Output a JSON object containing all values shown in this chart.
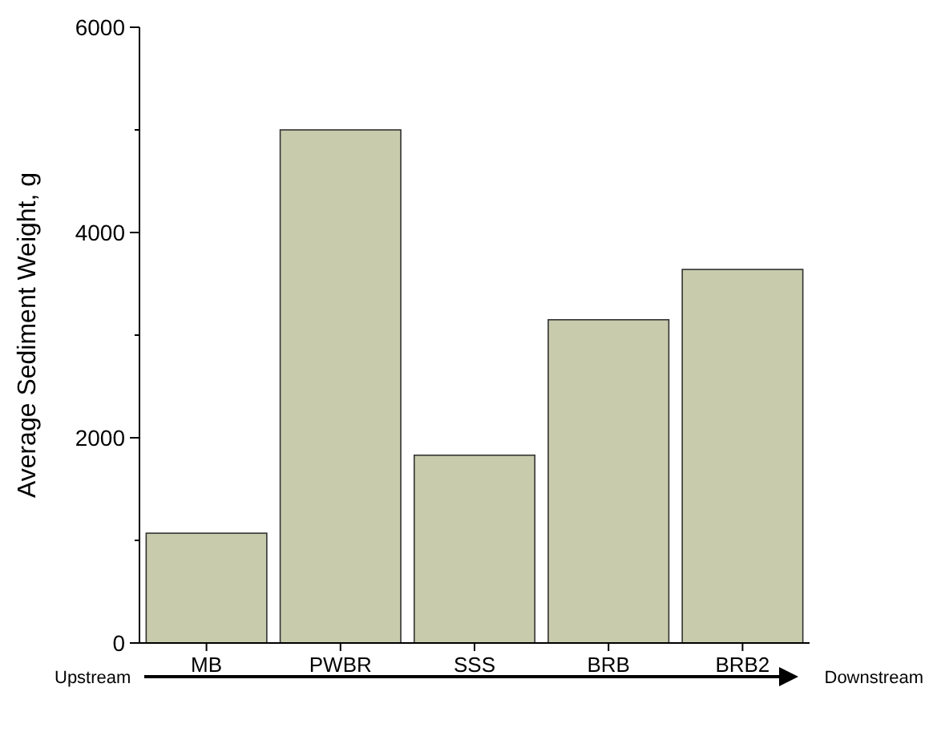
{
  "chart_data": {
    "type": "bar",
    "ylabel": "Average Sediment Weight, g",
    "categories": [
      "MB",
      "PWBR",
      "SSS",
      "BRB",
      "BRB2"
    ],
    "values": [
      1070,
      5000,
      1830,
      3150,
      3640
    ],
    "color": "#c8cbac",
    "ylim": [
      0,
      6000
    ],
    "yticks": [
      0,
      {
        "value": 1000,
        "label": null
      },
      2000,
      {
        "value": 3000,
        "label": null
      },
      4000,
      {
        "value": 5000,
        "label": null
      },
      6000
    ],
    "grid": false,
    "annotations": [
      "Upstream",
      "Downstream"
    ]
  }
}
